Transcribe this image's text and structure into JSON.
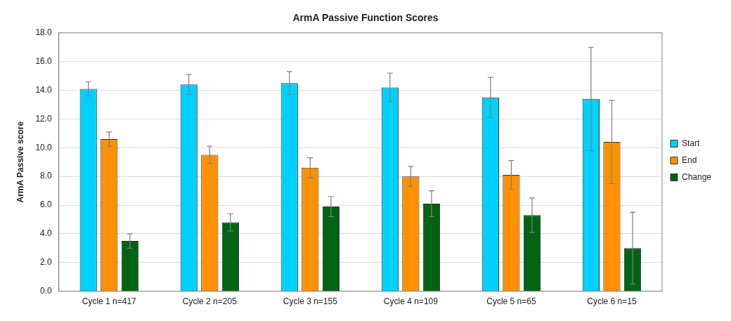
{
  "chart_data": {
    "type": "bar",
    "title": "ArmA Passive Function Scores",
    "ylabel": "ArmA Passive score",
    "categories": [
      "Cycle 1 n=417",
      "Cycle 2 n=205",
      "Cycle 3 n=155",
      "Cycle 4 n=109",
      "Cycle 5 n=65",
      "Cycle 6 n=15"
    ],
    "series": [
      {
        "name": "Start",
        "color": "#00d0ff",
        "values": [
          14.1,
          14.4,
          14.5,
          14.2,
          13.5,
          13.4
        ],
        "errors": [
          0.5,
          0.7,
          0.8,
          1.0,
          1.4,
          3.6
        ]
      },
      {
        "name": "End",
        "color": "#ff9100",
        "values": [
          10.6,
          9.5,
          8.6,
          8.0,
          8.1,
          10.4
        ],
        "errors": [
          0.5,
          0.6,
          0.7,
          0.7,
          1.0,
          2.9
        ]
      },
      {
        "name": "Change",
        "color": "#006414",
        "values": [
          3.5,
          4.8,
          5.9,
          6.1,
          5.3,
          3.0
        ],
        "errors": [
          0.5,
          0.6,
          0.7,
          0.9,
          1.2,
          2.5
        ]
      }
    ],
    "ylim": [
      0,
      18
    ],
    "yticks": [
      {
        "value": 0,
        "label": "0.0"
      },
      {
        "value": 2,
        "label": "2.0"
      },
      {
        "value": 4,
        "label": "4.0"
      },
      {
        "value": 6,
        "label": "6.0"
      },
      {
        "value": 8,
        "label": "8.0"
      },
      {
        "value": 10,
        "label": "10.0"
      },
      {
        "value": 12,
        "label": "12.0"
      },
      {
        "value": 14,
        "label": "14.0"
      },
      {
        "value": 16,
        "label": "16.0"
      },
      {
        "value": 18,
        "label": "18.0"
      }
    ],
    "grid": "y",
    "legend": "right"
  }
}
